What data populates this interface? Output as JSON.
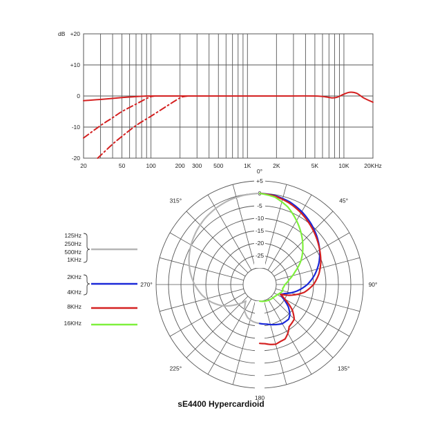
{
  "chart_data": [
    {
      "type": "line",
      "name": "frequency-response",
      "ylabel": "dB",
      "y_ticks": [
        {
          "value": 20,
          "label": "+20"
        },
        {
          "value": 10,
          "label": "+10"
        },
        {
          "value": 0,
          "label": "0"
        },
        {
          "value": -10,
          "label": "-10"
        },
        {
          "value": -20,
          "label": "-20"
        }
      ],
      "ylim": [
        -20,
        20
      ],
      "xlim": [
        20,
        20000
      ],
      "x_scale": "log",
      "x_ticks": [
        {
          "value": 20,
          "label": "20"
        },
        {
          "value": 50,
          "label": "50"
        },
        {
          "value": 100,
          "label": "100"
        },
        {
          "value": 200,
          "label": "200"
        },
        {
          "value": 300,
          "label": "300"
        },
        {
          "value": 500,
          "label": "500"
        },
        {
          "value": 1000,
          "label": "1K"
        },
        {
          "value": 2000,
          "label": "2K"
        },
        {
          "value": 5000,
          "label": "5K"
        },
        {
          "value": 10000,
          "label": "10K"
        },
        {
          "value": 20000,
          "label": "20KHz"
        }
      ],
      "grid_x": [
        20,
        30,
        40,
        50,
        60,
        70,
        80,
        90,
        100,
        200,
        300,
        400,
        500,
        600,
        700,
        800,
        900,
        1000,
        2000,
        3000,
        4000,
        5000,
        6000,
        7000,
        8000,
        9000,
        10000,
        20000
      ],
      "series": [
        {
          "name": "flat",
          "style": "solid",
          "color": "#d42020",
          "x": [
            20,
            30,
            50,
            70,
            90,
            100,
            200,
            500,
            1000,
            2000,
            5000,
            6500,
            7500,
            8500,
            10000,
            11500,
            13500,
            16000,
            20000
          ],
          "y": [
            -1.5,
            -1.1,
            -0.5,
            -0.2,
            0,
            0,
            0,
            0,
            0,
            0,
            0,
            -0.3,
            -0.6,
            -0.4,
            0.6,
            1.2,
            0.9,
            -0.6,
            -2
          ]
        },
        {
          "name": "low-cut-1",
          "style": "dashed",
          "color": "#d42020",
          "x": [
            20,
            30,
            40,
            50,
            70,
            90,
            100,
            110
          ],
          "y": [
            -13.5,
            -9.5,
            -7,
            -5,
            -2.6,
            -0.8,
            -0.2,
            0
          ]
        },
        {
          "name": "low-cut-2",
          "style": "dashed",
          "color": "#d42020",
          "x": [
            28,
            40,
            50,
            70,
            100,
            150,
            190,
            210,
            240
          ],
          "y": [
            -20,
            -15.5,
            -13,
            -9.5,
            -6.5,
            -3,
            -1,
            -0.3,
            0
          ]
        }
      ]
    },
    {
      "type": "polar",
      "name": "polar-pattern",
      "title": "sE4400  Hypercardioid",
      "r_ticks": [
        {
          "value": 5,
          "label": "+5"
        },
        {
          "value": 0,
          "label": "0"
        },
        {
          "value": -5,
          "label": "-5"
        },
        {
          "value": -10,
          "label": "-10"
        },
        {
          "value": -15,
          "label": "-15"
        },
        {
          "value": -20,
          "label": "-20"
        },
        {
          "value": -25,
          "label": "-25"
        }
      ],
      "r_range": [
        -30,
        5
      ],
      "angle_labels": [
        {
          "angle": 0,
          "label": "0°"
        },
        {
          "angle": 45,
          "label": "45°"
        },
        {
          "angle": 90,
          "label": "90°"
        },
        {
          "angle": 135,
          "label": "135°"
        },
        {
          "angle": 180,
          "label": "180"
        },
        {
          "angle": 225,
          "label": "225°"
        },
        {
          "angle": 270,
          "label": "270°"
        },
        {
          "angle": 315,
          "label": "315°"
        }
      ],
      "legend": [
        {
          "labels": [
            "125Hz",
            "250Hz",
            "500Hz",
            "1KHz"
          ],
          "color": "#b5b5b5"
        },
        {
          "labels": [
            "2KHz",
            "4KHz"
          ],
          "color": "#1a28d8"
        },
        {
          "labels": [
            "8KHz"
          ],
          "color": "#d42020"
        },
        {
          "labels": [
            "16KHz"
          ],
          "color": "#7ef03c"
        }
      ],
      "series": [
        {
          "name": "125Hz-1KHz",
          "color": "#b5b5b5",
          "side": "left",
          "angles": [
            0,
            10,
            20,
            30,
            40,
            50,
            60,
            70,
            80,
            90,
            100,
            110,
            120,
            130,
            140,
            150,
            160,
            170,
            180
          ],
          "values": [
            0,
            -0.2,
            -0.6,
            -1.3,
            -2.2,
            -3.4,
            -4.8,
            -6.4,
            -8.3,
            -10.5,
            -13,
            -16,
            -19.5,
            -24,
            -28,
            -24.5,
            -22.5,
            -21.5,
            -21
          ]
        },
        {
          "name": "2KHz-4KHz",
          "color": "#1a28d8",
          "side": "right",
          "angles": [
            0,
            10,
            20,
            30,
            40,
            50,
            60,
            70,
            80,
            90,
            100,
            110,
            115,
            120,
            128,
            135,
            140,
            150,
            160,
            170,
            180
          ],
          "values": [
            0,
            -0.4,
            -1.3,
            -2.8,
            -4.6,
            -6.6,
            -8.8,
            -11.3,
            -14.2,
            -17.5,
            -21.5,
            -26,
            -27.5,
            -26,
            -22,
            -19.5,
            -18.5,
            -18.5,
            -19.5,
            -20.5,
            -21
          ]
        },
        {
          "name": "8KHz",
          "color": "#d42020",
          "side": "right",
          "angles": [
            0,
            10,
            20,
            30,
            40,
            50,
            60,
            70,
            80,
            90,
            100,
            110,
            115,
            120,
            128,
            135,
            140,
            145,
            150,
            155,
            160,
            165,
            170,
            175,
            180
          ],
          "values": [
            0,
            -0.6,
            -1.8,
            -3.4,
            -5.2,
            -7,
            -8.8,
            -10.5,
            -12.5,
            -15,
            -18.5,
            -24,
            -27.5,
            -25,
            -20,
            -17,
            -16.5,
            -16,
            -14,
            -12.5,
            -12.3,
            -11.8,
            -12.2,
            -12.8,
            -13
          ]
        },
        {
          "name": "16KHz",
          "color": "#7ef03c",
          "side": "right",
          "angles": [
            0,
            10,
            20,
            30,
            40,
            50,
            60,
            70,
            80,
            90,
            100,
            105,
            110,
            120,
            130,
            140,
            150,
            160,
            170,
            180
          ],
          "values": [
            0,
            -1,
            -3.5,
            -7,
            -10.5,
            -14,
            -17.5,
            -21.5,
            -24.5,
            -26.5,
            -27.3,
            -27,
            -27.5,
            -28.5,
            -29,
            -29.2,
            -29.4,
            -29.6,
            -29.8,
            -30
          ]
        }
      ]
    }
  ],
  "caption": "sE4400  Hypercardioid"
}
